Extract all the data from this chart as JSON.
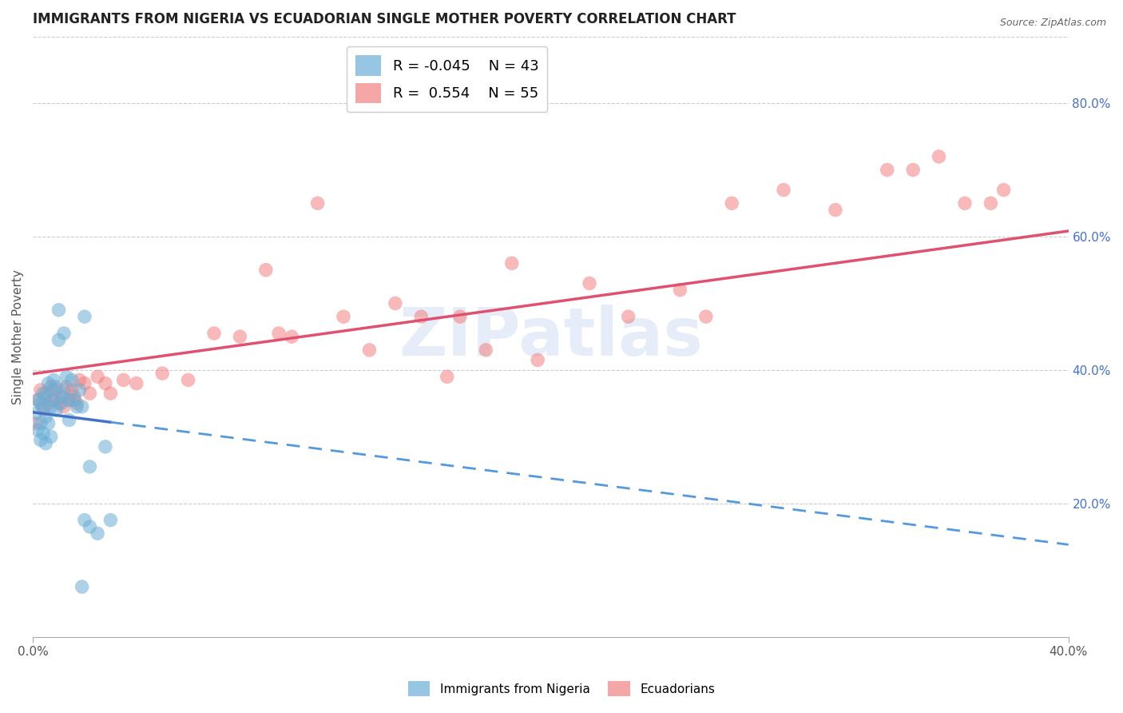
{
  "title": "IMMIGRANTS FROM NIGERIA VS ECUADORIAN SINGLE MOTHER POVERTY CORRELATION CHART",
  "source": "Source: ZipAtlas.com",
  "ylabel": "Single Mother Poverty",
  "right_yticks": [
    "80.0%",
    "60.0%",
    "40.0%",
    "20.0%"
  ],
  "right_ytick_vals": [
    0.8,
    0.6,
    0.4,
    0.2
  ],
  "xlim": [
    0.0,
    0.4
  ],
  "ylim": [
    0.0,
    0.9
  ],
  "legend_r1": "R = -0.045",
  "legend_n1": "N = 43",
  "legend_r2": "R =  0.554",
  "legend_n2": "N = 55",
  "color_nigeria": "#6baed6",
  "color_ecuador": "#f28080",
  "watermark": "ZIPatlas",
  "nigeria_x": [
    0.001,
    0.002,
    0.002,
    0.003,
    0.003,
    0.003,
    0.004,
    0.004,
    0.004,
    0.005,
    0.005,
    0.005,
    0.006,
    0.006,
    0.007,
    0.007,
    0.007,
    0.008,
    0.008,
    0.009,
    0.009,
    0.01,
    0.01,
    0.011,
    0.011,
    0.012,
    0.012,
    0.013,
    0.014,
    0.014,
    0.015,
    0.016,
    0.017,
    0.018,
    0.019,
    0.02,
    0.022,
    0.025,
    0.028,
    0.03,
    0.02,
    0.022,
    0.019
  ],
  "nigeria_y": [
    0.335,
    0.31,
    0.355,
    0.35,
    0.32,
    0.295,
    0.365,
    0.345,
    0.305,
    0.36,
    0.33,
    0.29,
    0.38,
    0.32,
    0.37,
    0.345,
    0.3,
    0.355,
    0.385,
    0.34,
    0.375,
    0.49,
    0.445,
    0.36,
    0.35,
    0.455,
    0.37,
    0.39,
    0.355,
    0.325,
    0.385,
    0.355,
    0.345,
    0.37,
    0.345,
    0.175,
    0.255,
    0.155,
    0.285,
    0.175,
    0.48,
    0.165,
    0.075
  ],
  "ecuador_x": [
    0.001,
    0.002,
    0.003,
    0.004,
    0.005,
    0.006,
    0.007,
    0.008,
    0.009,
    0.01,
    0.011,
    0.012,
    0.013,
    0.014,
    0.015,
    0.016,
    0.017,
    0.018,
    0.02,
    0.022,
    0.025,
    0.028,
    0.03,
    0.035,
    0.04,
    0.05,
    0.06,
    0.07,
    0.08,
    0.095,
    0.1,
    0.12,
    0.13,
    0.15,
    0.16,
    0.175,
    0.195,
    0.215,
    0.23,
    0.25,
    0.26,
    0.27,
    0.29,
    0.31,
    0.33,
    0.34,
    0.35,
    0.36,
    0.37,
    0.375,
    0.09,
    0.11,
    0.14,
    0.165,
    0.185
  ],
  "ecuador_y": [
    0.32,
    0.355,
    0.37,
    0.34,
    0.365,
    0.35,
    0.375,
    0.355,
    0.37,
    0.35,
    0.36,
    0.345,
    0.375,
    0.355,
    0.37,
    0.36,
    0.35,
    0.385,
    0.38,
    0.365,
    0.39,
    0.38,
    0.365,
    0.385,
    0.38,
    0.395,
    0.385,
    0.455,
    0.45,
    0.455,
    0.45,
    0.48,
    0.43,
    0.48,
    0.39,
    0.43,
    0.415,
    0.53,
    0.48,
    0.52,
    0.48,
    0.65,
    0.67,
    0.64,
    0.7,
    0.7,
    0.72,
    0.65,
    0.65,
    0.67,
    0.55,
    0.65,
    0.5,
    0.48,
    0.56
  ]
}
